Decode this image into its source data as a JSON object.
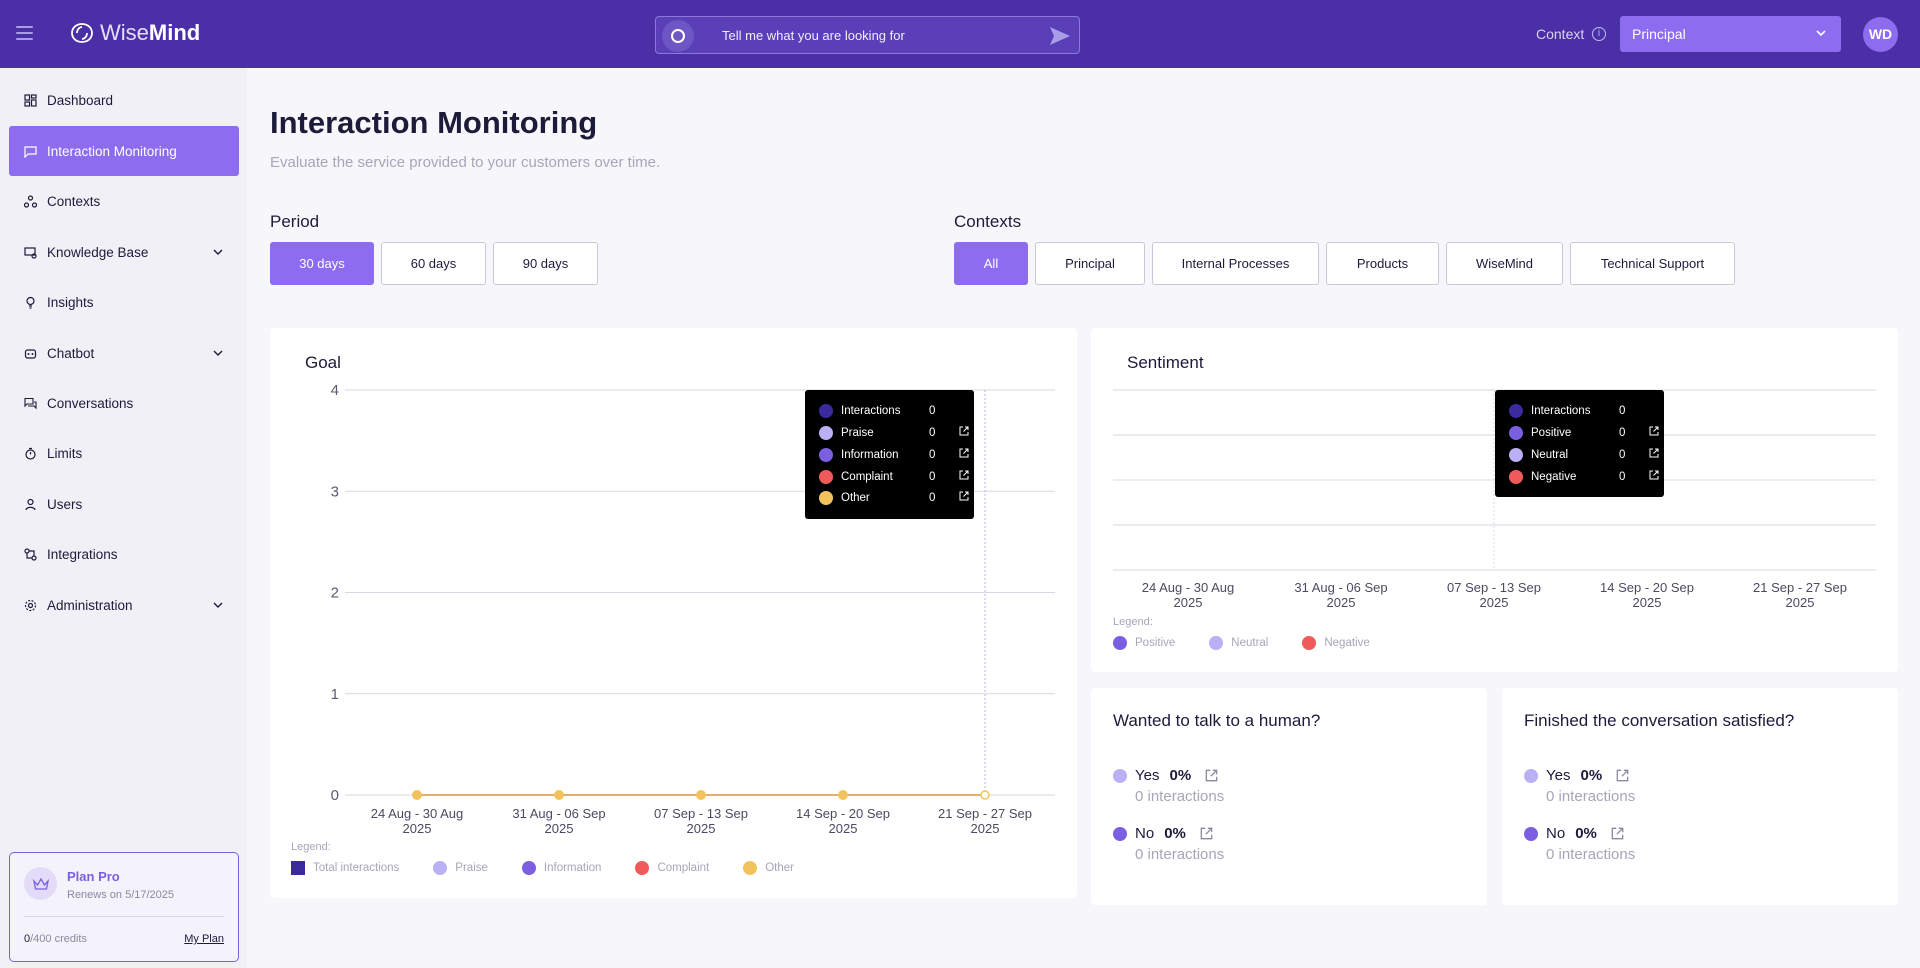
{
  "header": {
    "logo_light": "Wise",
    "logo_bold": "Mind",
    "search_placeholder": "Tell me what you are looking for",
    "context_label": "Context",
    "context_value": "Principal",
    "avatar_initials": "WD"
  },
  "sidebar": {
    "items": [
      {
        "label": "Dashboard",
        "icon": "dashboard-icon"
      },
      {
        "label": "Interaction Monitoring",
        "icon": "chat-flag-icon",
        "active": true
      },
      {
        "label": "Contexts",
        "icon": "contexts-icon"
      },
      {
        "label": "Knowledge Base",
        "icon": "knowledge-base-icon",
        "expandable": true
      },
      {
        "label": "Insights",
        "icon": "lightbulb-icon"
      },
      {
        "label": "Chatbot",
        "icon": "robot-icon",
        "expandable": true
      },
      {
        "label": "Conversations",
        "icon": "conversations-icon"
      },
      {
        "label": "Limits",
        "icon": "timer-icon"
      },
      {
        "label": "Users",
        "icon": "user-icon"
      },
      {
        "label": "Integrations",
        "icon": "integrations-icon"
      },
      {
        "label": "Administration",
        "icon": "gear-icon",
        "expandable": true
      }
    ],
    "plan": {
      "name": "Plan Pro",
      "renews": "Renews on 5/17/2025",
      "credits_used": "0",
      "credits_total": "/400 credits",
      "my_plan": "My Plan"
    }
  },
  "page": {
    "title": "Interaction Monitoring",
    "subtitle": "Evaluate the service provided to your customers over time."
  },
  "period": {
    "label": "Period",
    "options": [
      "30 days",
      "60 days",
      "90 days"
    ],
    "selected": "30 days"
  },
  "contexts": {
    "label": "Contexts",
    "options": [
      "All",
      "Principal",
      "Internal Processes",
      "Products",
      "WiseMind",
      "Technical Support"
    ],
    "selected": "All"
  },
  "colors": {
    "accent": "#8d6cf0",
    "interactions": "#3b2a9e",
    "praise": "#b9b0f5",
    "information": "#7b5fe0",
    "complaint": "#f05a5a",
    "other": "#f2c35c",
    "positive": "#7b5fe0",
    "neutral": "#b9b0f5",
    "negative": "#f05a5a"
  },
  "goal": {
    "title": "Goal",
    "legend_caption": "Legend:",
    "legend": [
      "Total interactions",
      "Praise",
      "Information",
      "Complaint",
      "Other"
    ],
    "tooltip": [
      {
        "label": "Interactions",
        "value": "0"
      },
      {
        "label": "Praise",
        "value": "0"
      },
      {
        "label": "Information",
        "value": "0"
      },
      {
        "label": "Complaint",
        "value": "0"
      },
      {
        "label": "Other",
        "value": "0"
      }
    ]
  },
  "sentiment": {
    "title": "Sentiment",
    "legend_caption": "Legend:",
    "legend": [
      "Positive",
      "Neutral",
      "Negative"
    ],
    "tooltip": [
      {
        "label": "Interactions",
        "value": "0"
      },
      {
        "label": "Positive",
        "value": "0"
      },
      {
        "label": "Neutral",
        "value": "0"
      },
      {
        "label": "Negative",
        "value": "0"
      }
    ]
  },
  "human": {
    "title": "Wanted to talk to a human?",
    "yes_label": "Yes",
    "yes_pct": "0%",
    "yes_count": "0 interactions",
    "no_label": "No",
    "no_pct": "0%",
    "no_count": "0 interactions"
  },
  "satisfied": {
    "title": "Finished the conversation satisfied?",
    "yes_label": "Yes",
    "yes_pct": "0%",
    "yes_count": "0 interactions",
    "no_label": "No",
    "no_pct": "0%",
    "no_count": "0 interactions"
  },
  "chart_data": [
    {
      "type": "line",
      "title": "Goal",
      "categories": [
        [
          "24 Aug - 30 Aug",
          "2025"
        ],
        [
          "31 Aug - 06 Sep",
          "2025"
        ],
        [
          "07 Sep - 13 Sep",
          "2025"
        ],
        [
          "14 Sep - 20 Sep",
          "2025"
        ],
        [
          "21 Sep - 27 Sep",
          "2025"
        ]
      ],
      "yticks": [
        "0",
        "1",
        "2",
        "3",
        "4"
      ],
      "ylim": [
        0,
        4
      ],
      "series": [
        {
          "name": "Total interactions",
          "values": [
            0,
            0,
            0,
            0,
            0
          ]
        },
        {
          "name": "Praise",
          "values": [
            0,
            0,
            0,
            0,
            0
          ]
        },
        {
          "name": "Information",
          "values": [
            0,
            0,
            0,
            0,
            0
          ]
        },
        {
          "name": "Complaint",
          "values": [
            0,
            0,
            0,
            0,
            0
          ]
        },
        {
          "name": "Other",
          "values": [
            0,
            0,
            0,
            0,
            0
          ]
        }
      ],
      "grid": true,
      "legend_position": "bottom-left"
    },
    {
      "type": "bar",
      "title": "Sentiment",
      "categories": [
        [
          "24 Aug - 30 Aug",
          "2025"
        ],
        [
          "31 Aug - 06 Sep",
          "2025"
        ],
        [
          "07 Sep - 13 Sep",
          "2025"
        ],
        [
          "14 Sep - 20 Sep",
          "2025"
        ],
        [
          "21 Sep - 27 Sep",
          "2025"
        ]
      ],
      "series": [
        {
          "name": "Positive",
          "values": [
            0,
            0,
            0,
            0,
            0
          ]
        },
        {
          "name": "Neutral",
          "values": [
            0,
            0,
            0,
            0,
            0
          ]
        },
        {
          "name": "Negative",
          "values": [
            0,
            0,
            0,
            0,
            0
          ]
        }
      ],
      "grid": true,
      "legend_position": "bottom-left"
    }
  ]
}
